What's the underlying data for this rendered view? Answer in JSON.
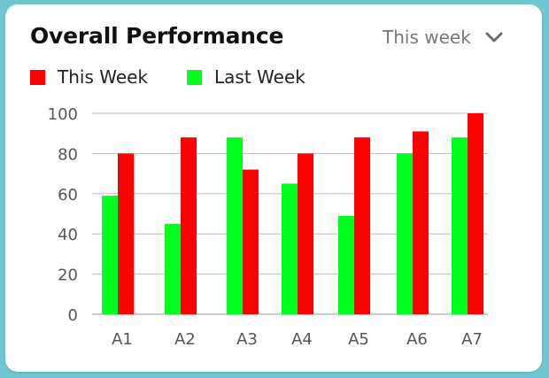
{
  "card": {
    "title": "Overall Performance",
    "period": "This week"
  },
  "legend": [
    {
      "label": "This Week",
      "color": "#ff0000"
    },
    {
      "label": "Last Week",
      "color": "#00ff1e"
    }
  ],
  "chart_data": {
    "type": "bar",
    "title": "Overall Performance",
    "xlabel": "",
    "ylabel": "",
    "categories": [
      "A1",
      "A2",
      "A3",
      "A4",
      "A5",
      "A6",
      "A7"
    ],
    "series": [
      {
        "name": "Last Week",
        "color": "#00ff1e",
        "values": [
          59,
          45,
          88,
          65,
          49,
          80,
          88
        ]
      },
      {
        "name": "This Week",
        "color": "#ff0000",
        "values": [
          80,
          88,
          72,
          80,
          88,
          91,
          100
        ]
      }
    ],
    "yticks": [
      0,
      20,
      40,
      60,
      80,
      100
    ],
    "ylim": [
      0,
      100
    ],
    "grid": true,
    "legend_position": "top-left"
  }
}
